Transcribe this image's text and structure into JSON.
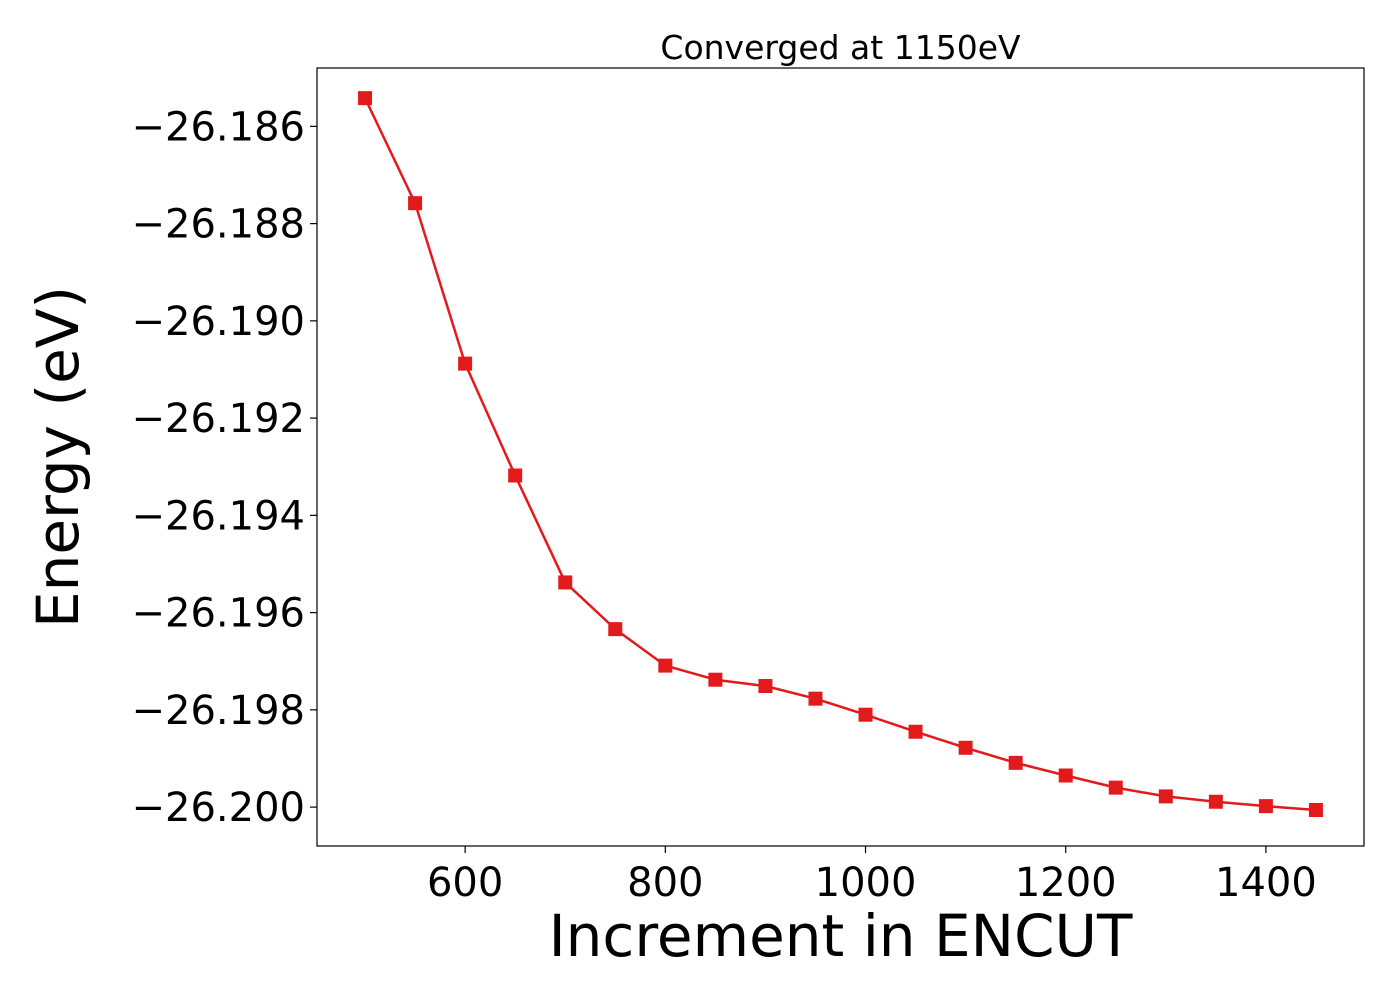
{
  "chart_data": {
    "type": "line",
    "title": "Converged at 1150eV",
    "xlabel": "Increment in ENCUT",
    "ylabel": "Energy (eV)",
    "xlim": [
      452,
      1498
    ],
    "ylim": [
      -26.2008,
      -26.1848
    ],
    "x_ticks": [
      600,
      800,
      1000,
      1200,
      1400
    ],
    "x_tick_labels": [
      "600",
      "800",
      "1000",
      "1200",
      "1400"
    ],
    "y_ticks": [
      -26.186,
      -26.188,
      -26.19,
      -26.192,
      -26.194,
      -26.196,
      -26.198,
      -26.2
    ],
    "y_tick_labels": [
      "−26.186",
      "−26.188",
      "−26.190",
      "−26.192",
      "−26.194",
      "−26.196",
      "−26.198",
      "−26.200"
    ],
    "grid": false,
    "legend": "none",
    "series": [
      {
        "color": "#e31a1c",
        "marker": "square",
        "x": [
          500,
          550,
          600,
          650,
          700,
          750,
          800,
          850,
          900,
          950,
          1000,
          1050,
          1100,
          1150,
          1200,
          1250,
          1300,
          1350,
          1400,
          1450
        ],
        "y": [
          -26.18542,
          -26.18758,
          -26.19088,
          -26.19318,
          -26.19538,
          -26.19634,
          -26.19709,
          -26.19738,
          -26.19751,
          -26.19777,
          -26.1981,
          -26.19845,
          -26.19878,
          -26.19909,
          -26.19935,
          -26.1996,
          -26.19978,
          -26.19989,
          -26.19998,
          -26.20006
        ]
      }
    ]
  }
}
